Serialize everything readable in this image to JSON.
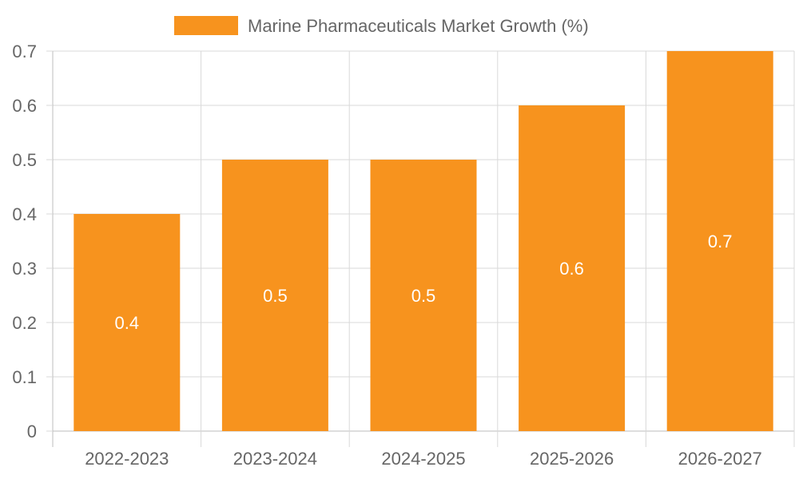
{
  "colors": {
    "bar": "#F7931E",
    "grid": "#d9d9d9",
    "axis": "#bdbdbd",
    "text": "#666666",
    "label": "#ffffff"
  },
  "chart_data": {
    "type": "bar",
    "title": "",
    "xlabel": "",
    "ylabel": "",
    "categories": [
      "2022-2023",
      "2023-2024",
      "2024-2025",
      "2025-2026",
      "2026-2027"
    ],
    "series": [
      {
        "name": "Marine Pharmaceuticals Market Growth (%)",
        "values": [
          0.4,
          0.5,
          0.5,
          0.6,
          0.7
        ],
        "data_labels": [
          "0.4",
          "0.5",
          "0.5",
          "0.6",
          "0.7"
        ]
      }
    ],
    "ylim": [
      0,
      0.7
    ],
    "y_ticks": [
      0,
      0.1,
      0.2,
      0.3,
      0.4,
      0.5,
      0.6,
      0.7
    ],
    "y_tick_labels": [
      "0",
      "0.1",
      "0.2",
      "0.3",
      "0.4",
      "0.5",
      "0.6",
      "0.7"
    ],
    "grid": true,
    "legend_position": "top-center"
  }
}
